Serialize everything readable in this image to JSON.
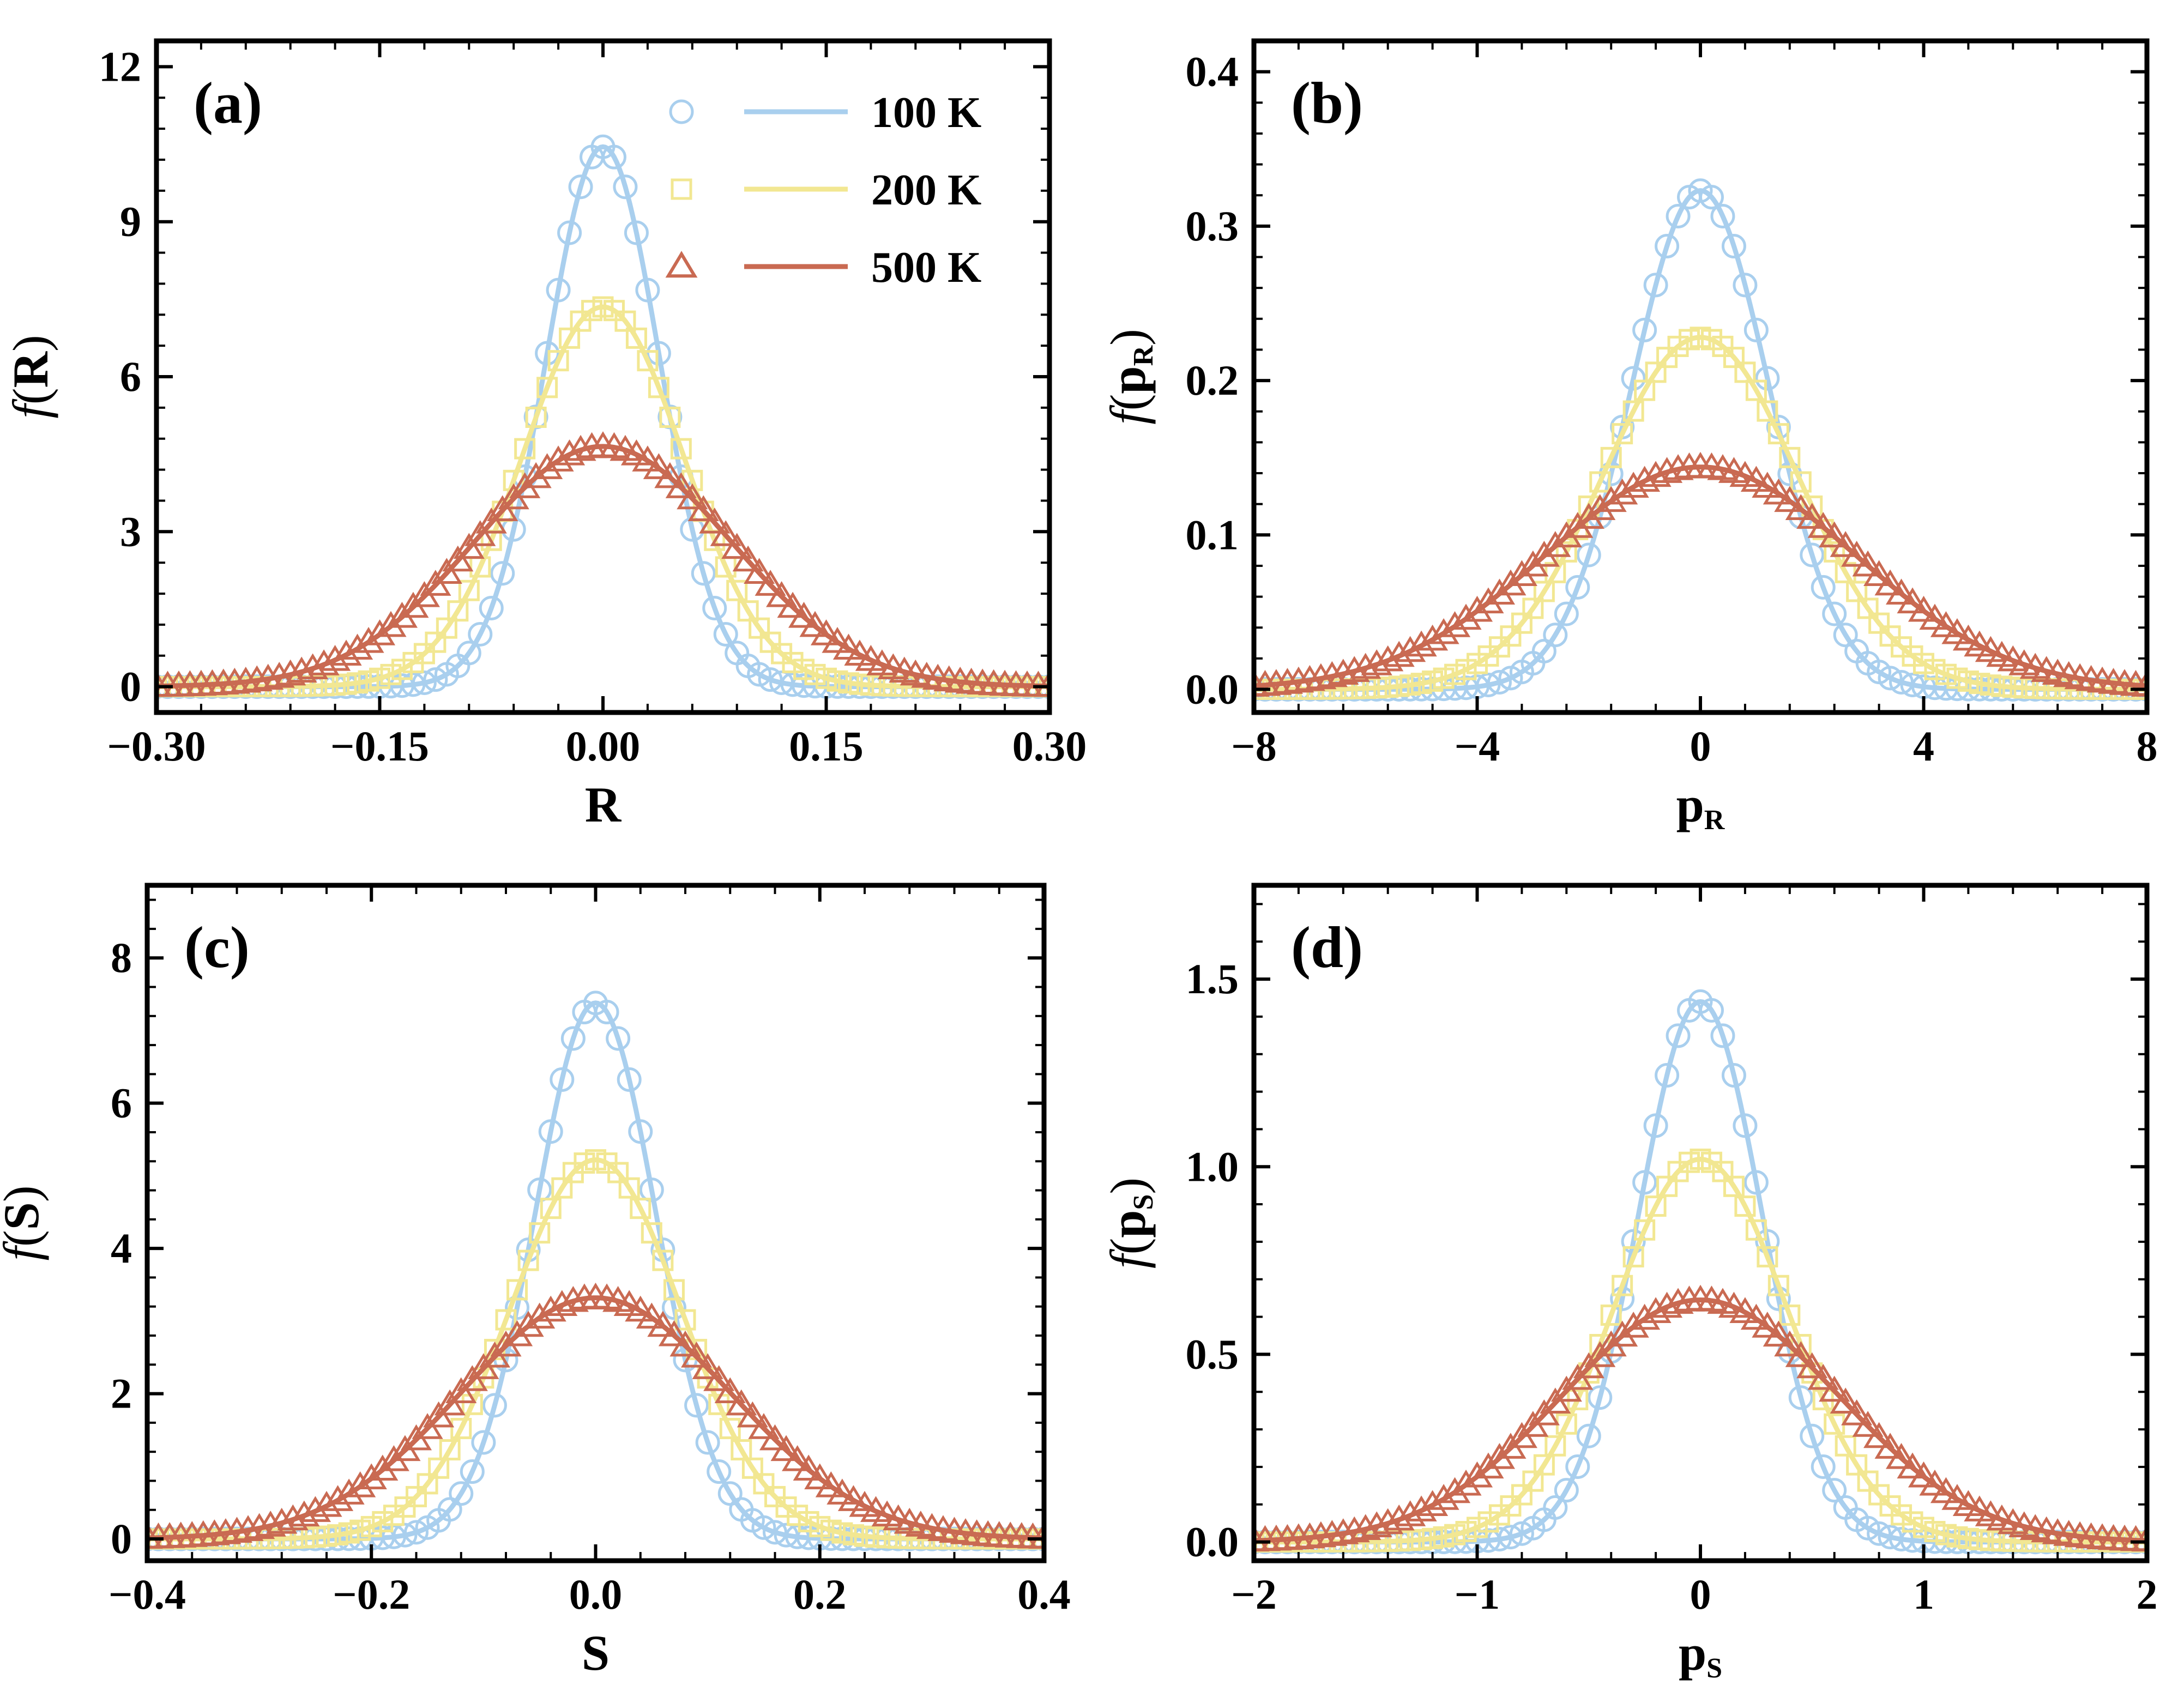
{
  "colors": {
    "100 K": "#a9cfee",
    "200 K": "#f2e792",
    "500 K": "#c96a52"
  },
  "legend": [
    {
      "label": "100 K",
      "marker": "circle"
    },
    {
      "label": "200 K",
      "marker": "square"
    },
    {
      "label": "500 K",
      "marker": "triangle"
    }
  ],
  "chart_data": [
    {
      "type": "line",
      "panel": "(a)",
      "xlabel": "R",
      "ylabel": "f(R)",
      "xlim": [
        -0.3,
        0.3
      ],
      "ylim": [
        -0.5,
        12.5
      ],
      "xticks": [
        -0.3,
        -0.15,
        0.0,
        0.15,
        0.3
      ],
      "xtick_labels": [
        "−0.30",
        "−0.15",
        "0.00",
        "0.15",
        "0.30"
      ],
      "yticks": [
        0,
        3,
        6,
        9,
        12
      ],
      "ytick_labels": [
        "0",
        "3",
        "6",
        "9",
        "12"
      ],
      "marker_step": 0.0075,
      "series": [
        {
          "name": "100 K",
          "marker": "circle",
          "peak": 10.45,
          "sigma": 0.0382
        },
        {
          "name": "200 K",
          "marker": "square",
          "peak": 7.35,
          "sigma": 0.0543
        },
        {
          "name": "500 K",
          "marker": "triangle",
          "peak": 4.65,
          "sigma": 0.0858
        }
      ],
      "legend_position": "top-right"
    },
    {
      "type": "line",
      "panel": "(b)",
      "xlabel": "p_R",
      "ylabel": "f(p_R)",
      "xlim": [
        -8,
        8
      ],
      "ylim": [
        -0.015,
        0.42
      ],
      "xticks": [
        -8,
        -4,
        0,
        4,
        8
      ],
      "xtick_labels": [
        "−8",
        "−4",
        "0",
        "4",
        "8"
      ],
      "yticks": [
        0.0,
        0.1,
        0.2,
        0.3,
        0.4
      ],
      "ytick_labels": [
        "0.0",
        "0.1",
        "0.2",
        "0.3",
        "0.4"
      ],
      "marker_step": 0.2,
      "series": [
        {
          "name": "100 K",
          "marker": "circle",
          "peak": 0.323,
          "sigma": 1.235
        },
        {
          "name": "200 K",
          "marker": "square",
          "peak": 0.228,
          "sigma": 1.75
        },
        {
          "name": "500 K",
          "marker": "triangle",
          "peak": 0.144,
          "sigma": 2.77
        }
      ]
    },
    {
      "type": "line",
      "panel": "(c)",
      "xlabel": "S",
      "ylabel": "f(S)",
      "xlim": [
        -0.4,
        0.4
      ],
      "ylim": [
        -0.3,
        9.0
      ],
      "xticks": [
        -0.4,
        -0.2,
        0.0,
        0.2,
        0.4
      ],
      "xtick_labels": [
        "−0.4",
        "−0.2",
        "0.0",
        "0.2",
        "0.4"
      ],
      "yticks": [
        0,
        2,
        4,
        6,
        8
      ],
      "ytick_labels": [
        "0",
        "2",
        "4",
        "6",
        "8"
      ],
      "marker_step": 0.01,
      "series": [
        {
          "name": "100 K",
          "marker": "circle",
          "peak": 7.38,
          "sigma": 0.054
        },
        {
          "name": "200 K",
          "marker": "square",
          "peak": 5.22,
          "sigma": 0.0764
        },
        {
          "name": "500 K",
          "marker": "triangle",
          "peak": 3.32,
          "sigma": 0.1202
        }
      ]
    },
    {
      "type": "line",
      "panel": "(d)",
      "xlabel": "p_S",
      "ylabel": "f(p_S)",
      "xlim": [
        -2,
        2
      ],
      "ylim": [
        -0.05,
        1.75
      ],
      "xticks": [
        -2,
        -1,
        0,
        1,
        2
      ],
      "xtick_labels": [
        "−2",
        "−1",
        "0",
        "1",
        "2"
      ],
      "yticks": [
        0.0,
        0.5,
        1.0,
        1.5
      ],
      "ytick_labels": [
        "0.0",
        "0.5",
        "1.0",
        "1.5"
      ],
      "marker_step": 0.05,
      "series": [
        {
          "name": "100 K",
          "marker": "circle",
          "peak": 1.44,
          "sigma": 0.277
        },
        {
          "name": "200 K",
          "marker": "square",
          "peak": 1.02,
          "sigma": 0.391
        },
        {
          "name": "500 K",
          "marker": "triangle",
          "peak": 0.645,
          "sigma": 0.618
        }
      ]
    }
  ]
}
